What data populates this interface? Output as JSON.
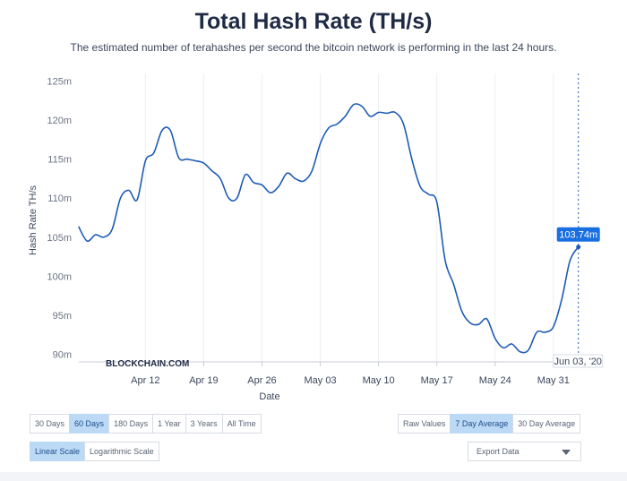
{
  "chart_data": {
    "type": "line",
    "title": "Total Hash Rate (TH/s)",
    "subtitle": "The estimated number of terahashes per second the bitcoin network is performing in the last 24 hours.",
    "xlabel": "Date",
    "ylabel": "Hash Rate TH/s",
    "ylim": [
      89,
      126
    ],
    "yticks": [
      90,
      95,
      100,
      105,
      110,
      115,
      120,
      125
    ],
    "ytick_labels": [
      "90m",
      "95m",
      "100m",
      "105m",
      "110m",
      "115m",
      "120m",
      "125m"
    ],
    "xticks": [
      "2020-04-12",
      "2020-04-19",
      "2020-04-26",
      "2020-05-03",
      "2020-05-10",
      "2020-05-17",
      "2020-05-24",
      "2020-05-31"
    ],
    "xtick_labels": [
      "Apr 12",
      "Apr 19",
      "Apr 26",
      "May 03",
      "May 10",
      "May 17",
      "May 24",
      "May 31"
    ],
    "xlim": [
      "2020-04-04",
      "2020-06-04"
    ],
    "grid": "vertical",
    "series": [
      {
        "color": "#1e5bb5",
        "points": [
          [
            "2020-04-04",
            106.3
          ],
          [
            "2020-04-05",
            104.5
          ],
          [
            "2020-04-06",
            105.3
          ],
          [
            "2020-04-07",
            105.0
          ],
          [
            "2020-04-08",
            106.0
          ],
          [
            "2020-04-09",
            110.0
          ],
          [
            "2020-04-10",
            111.0
          ],
          [
            "2020-04-11",
            109.8
          ],
          [
            "2020-04-12",
            114.8
          ],
          [
            "2020-04-13",
            115.8
          ],
          [
            "2020-04-14",
            118.7
          ],
          [
            "2020-04-15",
            118.7
          ],
          [
            "2020-04-16",
            115.2
          ],
          [
            "2020-04-17",
            115.0
          ],
          [
            "2020-04-18",
            114.8
          ],
          [
            "2020-04-19",
            114.5
          ],
          [
            "2020-04-20",
            113.5
          ],
          [
            "2020-04-21",
            112.5
          ],
          [
            "2020-04-22",
            110.0
          ],
          [
            "2020-04-23",
            110.0
          ],
          [
            "2020-04-24",
            113.0
          ],
          [
            "2020-04-25",
            112.0
          ],
          [
            "2020-04-26",
            111.7
          ],
          [
            "2020-04-27",
            110.7
          ],
          [
            "2020-04-28",
            111.5
          ],
          [
            "2020-04-29",
            113.2
          ],
          [
            "2020-04-30",
            112.5
          ],
          [
            "2020-05-01",
            112.2
          ],
          [
            "2020-05-02",
            113.5
          ],
          [
            "2020-05-03",
            117.0
          ],
          [
            "2020-05-04",
            119.0
          ],
          [
            "2020-05-05",
            119.5
          ],
          [
            "2020-05-06",
            120.5
          ],
          [
            "2020-05-07",
            122.0
          ],
          [
            "2020-05-08",
            121.8
          ],
          [
            "2020-05-09",
            120.5
          ],
          [
            "2020-05-10",
            121.0
          ],
          [
            "2020-05-11",
            120.9
          ],
          [
            "2020-05-12",
            121.0
          ],
          [
            "2020-05-13",
            119.5
          ],
          [
            "2020-05-14",
            115.0
          ],
          [
            "2020-05-15",
            111.5
          ],
          [
            "2020-05-16",
            110.5
          ],
          [
            "2020-05-17",
            109.5
          ],
          [
            "2020-05-18",
            102.0
          ],
          [
            "2020-05-19",
            99.0
          ],
          [
            "2020-05-20",
            95.5
          ],
          [
            "2020-05-21",
            94.0
          ],
          [
            "2020-05-22",
            93.8
          ],
          [
            "2020-05-23",
            94.5
          ],
          [
            "2020-05-24",
            92.0
          ],
          [
            "2020-05-25",
            90.8
          ],
          [
            "2020-05-26",
            91.3
          ],
          [
            "2020-05-27",
            90.3
          ],
          [
            "2020-05-28",
            90.5
          ],
          [
            "2020-05-29",
            92.8
          ],
          [
            "2020-05-30",
            92.8
          ],
          [
            "2020-05-31",
            93.5
          ],
          [
            "2020-06-01",
            97.0
          ],
          [
            "2020-06-02",
            102.0
          ],
          [
            "2020-06-03",
            103.74
          ]
        ]
      }
    ],
    "tooltip": {
      "value": "103.74m",
      "date": "Jun 03, '20"
    },
    "watermark": "BLOCKCHAIN.COM"
  },
  "controls": {
    "timespan": [
      {
        "label": "30 Days",
        "active": false
      },
      {
        "label": "60 Days",
        "active": true
      },
      {
        "label": "180 Days",
        "active": false
      },
      {
        "label": "1 Year",
        "active": false
      },
      {
        "label": "3 Years",
        "active": false
      },
      {
        "label": "All Time",
        "active": false
      }
    ],
    "averaging": [
      {
        "label": "Raw Values",
        "active": false
      },
      {
        "label": "7 Day Average",
        "active": true
      },
      {
        "label": "30 Day Average",
        "active": false
      }
    ],
    "scale": [
      {
        "label": "Linear Scale",
        "active": true
      },
      {
        "label": "Logarithmic Scale",
        "active": false
      }
    ],
    "export_label": "Export Data",
    "colors": {
      "accent": "#1e5bb5",
      "active_button": "#bcd9f6",
      "tooltip": "#1a6fe0"
    }
  }
}
